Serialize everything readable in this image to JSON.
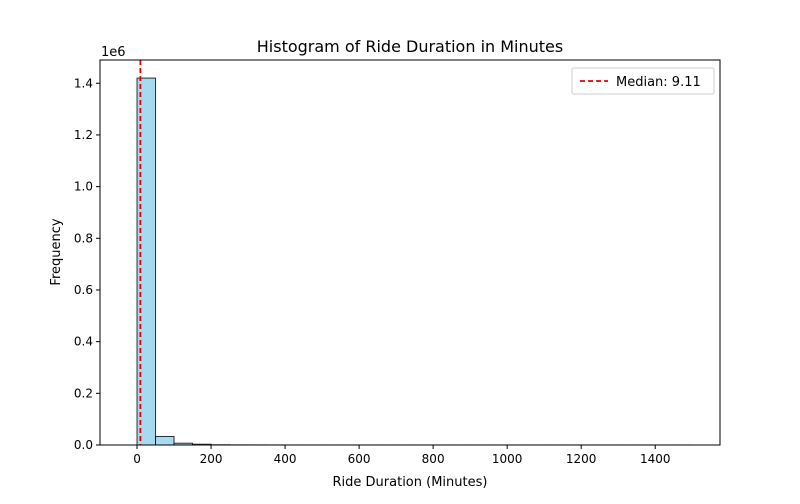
{
  "chart_data": {
    "type": "bar",
    "title": "Histogram of Ride Duration in Minutes",
    "xlabel": "Ride Duration (Minutes)",
    "ylabel": "Frequency",
    "y_offset_label": "1e6",
    "xlim": [
      -100,
      1575
    ],
    "ylim": [
      0,
      1.49
    ],
    "x_ticks": [
      0,
      200,
      400,
      600,
      800,
      1000,
      1200,
      1400
    ],
    "x_tick_labels": [
      "0",
      "200",
      "400",
      "600",
      "800",
      "1000",
      "1200",
      "1400"
    ],
    "y_ticks": [
      0.0,
      0.2,
      0.4,
      0.6,
      0.8,
      1.0,
      1.2,
      1.4
    ],
    "y_tick_labels": [
      "0.0",
      "0.2",
      "0.4",
      "0.6",
      "0.8",
      "1.0",
      "1.2",
      "1.4"
    ],
    "bins": [
      {
        "x0": 0,
        "x1": 50,
        "value": 1.42
      },
      {
        "x0": 50,
        "x1": 100,
        "value": 0.033
      },
      {
        "x0": 100,
        "x1": 150,
        "value": 0.007
      },
      {
        "x0": 150,
        "x1": 200,
        "value": 0.003
      },
      {
        "x0": 200,
        "x1": 250,
        "value": 0.0008
      },
      {
        "x0": 250,
        "x1": 300,
        "value": 0.0004
      },
      {
        "x0": 300,
        "x1": 350,
        "value": 0.0003
      },
      {
        "x0": 350,
        "x1": 400,
        "value": 0.0002
      },
      {
        "x0": 400,
        "x1": 450,
        "value": 0.0001
      },
      {
        "x0": 450,
        "x1": 500,
        "value": 0.0001
      },
      {
        "x0": 500,
        "x1": 550,
        "value": 0.0001
      },
      {
        "x0": 550,
        "x1": 600,
        "value": 0.0001
      },
      {
        "x0": 600,
        "x1": 650,
        "value": 0.0001
      },
      {
        "x0": 650,
        "x1": 700,
        "value": 0.0001
      },
      {
        "x0": 700,
        "x1": 750,
        "value": 0.0001
      },
      {
        "x0": 750,
        "x1": 800,
        "value": 0.0001
      },
      {
        "x0": 800,
        "x1": 850,
        "value": 0.0001
      },
      {
        "x0": 850,
        "x1": 900,
        "value": 0.0001
      },
      {
        "x0": 900,
        "x1": 950,
        "value": 0.0001
      },
      {
        "x0": 950,
        "x1": 1000,
        "value": 0.0001
      },
      {
        "x0": 1000,
        "x1": 1050,
        "value": 0.0001
      },
      {
        "x0": 1050,
        "x1": 1100,
        "value": 0.0001
      },
      {
        "x0": 1100,
        "x1": 1150,
        "value": 0.0001
      },
      {
        "x0": 1150,
        "x1": 1200,
        "value": 0.0001
      },
      {
        "x0": 1200,
        "x1": 1250,
        "value": 0.0001
      },
      {
        "x0": 1250,
        "x1": 1300,
        "value": 0.0001
      },
      {
        "x0": 1300,
        "x1": 1350,
        "value": 0.0001
      },
      {
        "x0": 1350,
        "x1": 1400,
        "value": 0.0001
      },
      {
        "x0": 1400,
        "x1": 1450,
        "value": 0.0001
      },
      {
        "x0": 1450,
        "x1": 1500,
        "value": 0.0001
      }
    ],
    "median": 9.11,
    "legend": {
      "label": "Median: 9.11",
      "position": "upper right"
    },
    "grid": false,
    "colors": {
      "bar_fill": "#87ceeb",
      "bar_edge": "#000000",
      "median_line": "#e00000",
      "axis": "#000000"
    }
  }
}
